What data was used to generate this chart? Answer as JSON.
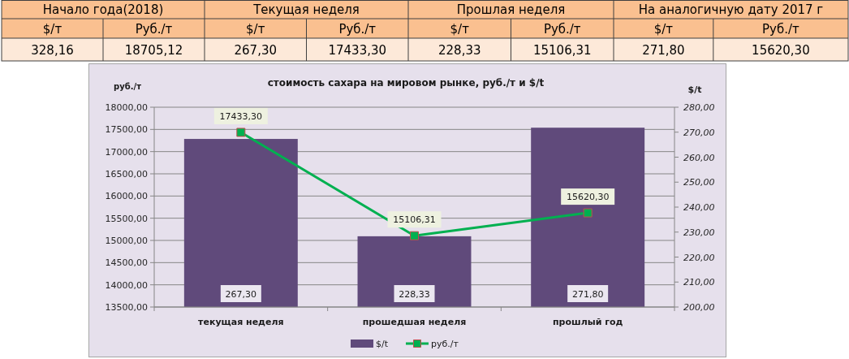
{
  "chart_data": [
    {
      "type": "other",
      "categories": [
        "Начало года(2018)",
        "Текущая неделя",
        "Прошлая неделя",
        "На аналогичную дату 2017 г"
      ],
      "series": [
        {
          "name": "$/т",
          "values": [
            328.16,
            267.3,
            228.33,
            271.8
          ],
          "value_labels": [
            "328,16",
            "267,30",
            "228,33",
            "271,80"
          ]
        },
        {
          "name": "Руб./т",
          "values": [
            18705.12,
            17433.3,
            15106.31,
            15620.3
          ],
          "value_labels": [
            "18705,12",
            "17433,30",
            "15106,31",
            "15620,30"
          ]
        }
      ]
    },
    {
      "type": "bar",
      "title": "стоимость сахара на мировом рынке, руб./т и $/t",
      "ylabel": "руб./т",
      "y2label": "$/t",
      "categories": [
        "текущая неделя",
        "прошедшая неделя",
        "прошлый год"
      ],
      "series": [
        {
          "name": "$/t",
          "type": "bar",
          "axis": "y2",
          "color": "#604a7b",
          "values": [
            267.3,
            228.33,
            271.8
          ],
          "value_labels": [
            "267,30",
            "228,33",
            "271,80"
          ]
        },
        {
          "name": "руб./т",
          "type": "line",
          "color": "#00b050",
          "marker": "square",
          "values": [
            17433.3,
            15106.31,
            15620.3
          ],
          "value_labels": [
            "17433,30",
            "15106,31",
            "15620,30"
          ]
        }
      ],
      "ylim": [
        13500,
        18000
      ],
      "yticks": [
        {
          "value": 13500,
          "label": "13500,00"
        },
        {
          "value": 14000,
          "label": "14000,00"
        },
        {
          "value": 14500,
          "label": "14500,00"
        },
        {
          "value": 15000,
          "label": "15000,00"
        },
        {
          "value": 15500,
          "label": "15500,00"
        },
        {
          "value": 16000,
          "label": "16000,00"
        },
        {
          "value": 16500,
          "label": "16500,00"
        },
        {
          "value": 17000,
          "label": "17000,00"
        },
        {
          "value": 17500,
          "label": "17500,00"
        },
        {
          "value": 18000,
          "label": "18000,00"
        }
      ],
      "y2lim": [
        200,
        280
      ],
      "y2ticks": [
        {
          "value": 200,
          "label": "200,00"
        },
        {
          "value": 210,
          "label": "210,00"
        },
        {
          "value": 220,
          "label": "220,00"
        },
        {
          "value": 230,
          "label": "230,00"
        },
        {
          "value": 240,
          "label": "240,00"
        },
        {
          "value": 250,
          "label": "250,00"
        },
        {
          "value": 260,
          "label": "260,00"
        },
        {
          "value": 270,
          "label": "270,00"
        },
        {
          "value": 280,
          "label": "280,00"
        }
      ],
      "grid": "y",
      "legend": "bottom"
    }
  ]
}
